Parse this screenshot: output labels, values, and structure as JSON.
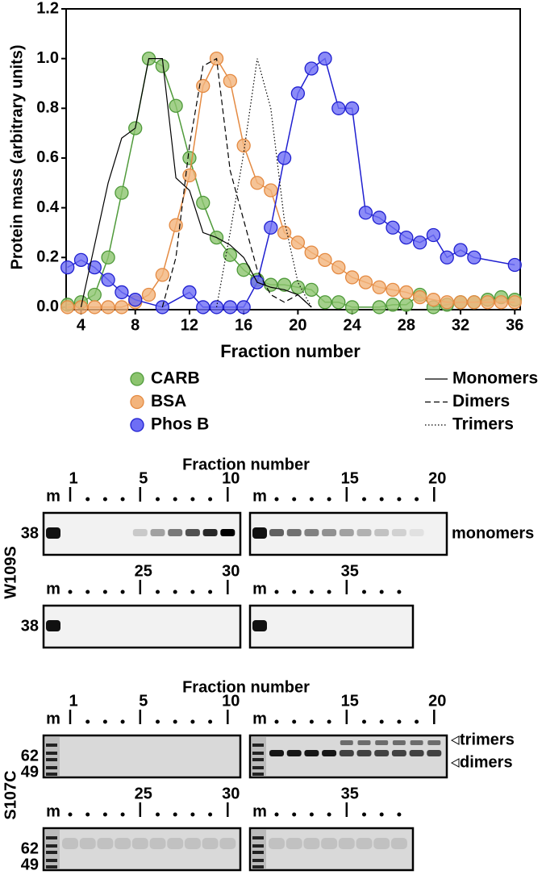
{
  "chart_data": {
    "type": "line",
    "xlabel": "Fraction number",
    "ylabel": "Protein mass (arbitrary units)",
    "xlim": [
      2.9,
      36.4
    ],
    "ylim": [
      -0.01,
      1.2
    ],
    "xticks": [
      4,
      8,
      12,
      16,
      20,
      24,
      28,
      32,
      36
    ],
    "yticks": [
      {
        "value": 0,
        "label": "0.0"
      },
      {
        "value": 0.2,
        "label": "0.2"
      },
      {
        "value": 0.4,
        "label": "0.4"
      },
      {
        "value": 0.6,
        "label": "0.6"
      },
      {
        "value": 0.8,
        "label": "0.8"
      },
      {
        "value": 1.0,
        "label": "1.0"
      },
      {
        "value": 1.2,
        "label": "1.2"
      }
    ],
    "series": [
      {
        "name": "CARB",
        "color": "#4f9a3a",
        "fill": "#8cc46e",
        "marker": "circle",
        "linestyle": "solid",
        "x": [
          3,
          4,
          5,
          6,
          7,
          8,
          9,
          10,
          11,
          12,
          13,
          14,
          15,
          16,
          17,
          18,
          19,
          20,
          21,
          22,
          23,
          24,
          26,
          27,
          28,
          29,
          30,
          31,
          32,
          33,
          34,
          35,
          36
        ],
        "values": [
          0.01,
          0.02,
          0.05,
          0.2,
          0.46,
          0.72,
          1.0,
          0.97,
          0.81,
          0.6,
          0.42,
          0.28,
          0.21,
          0.15,
          0.11,
          0.09,
          0.09,
          0.08,
          0.07,
          0.02,
          0.02,
          0.0,
          0.0,
          0.01,
          0.01,
          0.05,
          0.0,
          0.01,
          0.02,
          0.02,
          0.03,
          0.04,
          0.03
        ]
      },
      {
        "name": "BSA",
        "color": "#e48a42",
        "fill": "#f3b47c",
        "marker": "circle",
        "linestyle": "solid",
        "x": [
          3,
          4,
          5,
          6,
          7,
          8,
          9,
          10,
          11,
          12,
          13,
          14,
          15,
          16,
          17,
          18,
          19,
          20,
          21,
          22,
          23,
          24,
          25,
          26,
          27,
          28,
          29,
          30,
          31,
          32,
          33,
          34,
          35,
          36
        ],
        "values": [
          0.0,
          0.0,
          0.0,
          0.0,
          0.0,
          0.02,
          0.05,
          0.13,
          0.33,
          0.53,
          0.89,
          1.0,
          0.91,
          0.65,
          0.5,
          0.47,
          0.3,
          0.26,
          0.22,
          0.19,
          0.16,
          0.12,
          0.1,
          0.08,
          0.07,
          0.06,
          0.04,
          0.03,
          0.02,
          0.02,
          0.02,
          0.02,
          0.02,
          0.02
        ]
      },
      {
        "name": "Phos B",
        "color": "#1f1fd0",
        "fill": "#6e6ef5",
        "marker": "circle",
        "linestyle": "solid",
        "x": [
          3,
          4,
          5,
          6,
          7,
          8,
          10,
          12,
          13,
          14,
          15,
          16,
          17,
          18,
          19,
          20,
          21,
          22,
          23,
          24,
          25,
          26,
          27,
          28,
          29,
          30,
          31,
          32,
          33,
          36
        ],
        "values": [
          0.16,
          0.19,
          0.16,
          0.11,
          0.06,
          0.03,
          0.0,
          0.06,
          0.0,
          0.0,
          0.0,
          0.0,
          0.1,
          0.32,
          0.6,
          0.86,
          0.96,
          1.0,
          0.8,
          0.8,
          0.38,
          0.36,
          0.32,
          0.28,
          0.26,
          0.29,
          0.2,
          0.23,
          0.2,
          0.17
        ]
      },
      {
        "name": "Monomers",
        "color": "#000000",
        "linestyle": "solid",
        "x": [
          4,
          5,
          6,
          7,
          8,
          9,
          10,
          11,
          12,
          13,
          14,
          15,
          16,
          17,
          18,
          19,
          20,
          21
        ],
        "values": [
          0.0,
          0.25,
          0.5,
          0.68,
          0.72,
          1.0,
          1.0,
          0.52,
          0.47,
          0.3,
          0.28,
          0.25,
          0.2,
          0.1,
          0.08,
          0.07,
          0.05,
          0.0
        ]
      },
      {
        "name": "Dimers",
        "color": "#000000",
        "linestyle": "dashed",
        "x": [
          10,
          11,
          12,
          13,
          14,
          15,
          16,
          17,
          18,
          19,
          20,
          21
        ],
        "values": [
          0.0,
          0.2,
          0.65,
          0.97,
          1.0,
          0.55,
          0.35,
          0.15,
          0.05,
          0.02,
          0.05,
          0.0
        ]
      },
      {
        "name": "Trimers",
        "color": "#000000",
        "linestyle": "dotted",
        "x": [
          14,
          15,
          16,
          17,
          18,
          19,
          20,
          21
        ],
        "values": [
          0.0,
          0.3,
          0.62,
          1.0,
          0.8,
          0.35,
          0.1,
          0.0
        ]
      }
    ]
  },
  "gels": [
    {
      "title": "Fraction number",
      "mutant": "W109S",
      "side_labels": [
        "monomers"
      ],
      "rows": [
        {
          "mw": [
            "38"
          ],
          "panels": [
            {
              "marker": "m",
              "ticks": [
                1,
                5,
                10
              ]
            },
            {
              "marker": "m",
              "ticks": [
                15,
                20
              ]
            }
          ]
        },
        {
          "mw": [
            "38"
          ],
          "panels": [
            {
              "marker": "m",
              "ticks": [
                25,
                30
              ]
            },
            {
              "marker": "m",
              "ticks": [
                35
              ]
            }
          ]
        }
      ]
    },
    {
      "title": "Fraction number",
      "mutant": "S107C",
      "side_labels": [
        "trimers",
        "dimers"
      ],
      "rows": [
        {
          "mw": [
            "62",
            "49"
          ],
          "panels": [
            {
              "marker": "m",
              "ticks": [
                1,
                5,
                10
              ]
            },
            {
              "marker": "m",
              "ticks": [
                15,
                20
              ]
            }
          ]
        },
        {
          "mw": [
            "62",
            "49"
          ],
          "panels": [
            {
              "marker": "m",
              "ticks": [
                25,
                30
              ]
            },
            {
              "marker": "m",
              "ticks": [
                35
              ]
            }
          ]
        }
      ]
    }
  ]
}
